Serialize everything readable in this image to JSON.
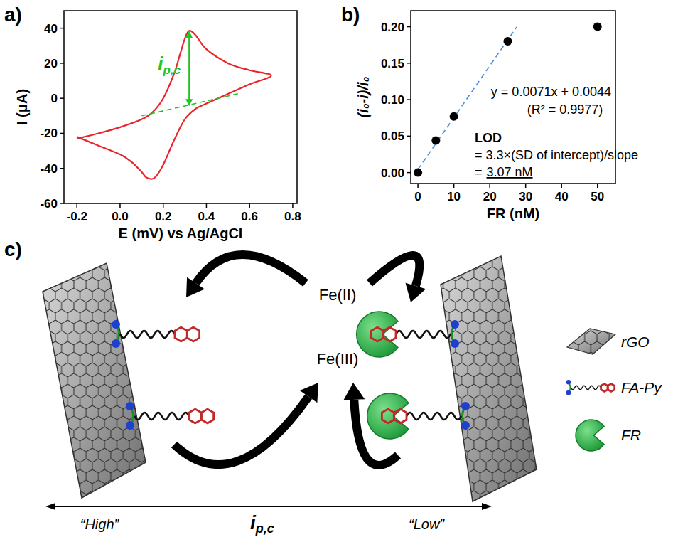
{
  "chart_data": [
    {
      "type": "line",
      "panel": "a)",
      "x_label": "E (mV) vs Ag/AgCl",
      "y_label": "I (μA)",
      "x": [
        -0.2,
        -0.1,
        0,
        0.1,
        0.15,
        0.2,
        0.25,
        0.28,
        0.3,
        0.32,
        0.35,
        0.4,
        0.5,
        0.6,
        0.7,
        0.6,
        0.5,
        0.4,
        0.35,
        0.3,
        0.25,
        0.2,
        0.17,
        0.15,
        0.12,
        0.1,
        0.05,
        0,
        -0.1,
        -0.2
      ],
      "values": [
        -23,
        -20,
        -16.5,
        -12,
        -8,
        0,
        14,
        26,
        34,
        38.5,
        36,
        28,
        20,
        16,
        13,
        8,
        2.5,
        -3,
        -6,
        -12,
        -24,
        -38,
        -44,
        -46,
        -45,
        -42,
        -36,
        -32,
        -27,
        -22
      ],
      "color": "#e8262a",
      "xlim": [
        -0.26,
        0.82
      ],
      "xticks": [
        -0.2,
        {
          "value": 0,
          "label": "0.0"
        },
        0.2,
        0.4,
        0.6,
        0.8
      ],
      "ylim": [
        -60,
        50
      ],
      "yticks": [
        -60,
        -40,
        -20,
        0,
        20,
        40
      ],
      "baseline": {
        "x": [
          0.1,
          0.56
        ],
        "values": [
          -10,
          3
        ],
        "color": "#22c422",
        "line_style": "dashed"
      },
      "annotation": {
        "text": "i",
        "subscript": "p,c",
        "x": 0.32,
        "y_from": -4.5,
        "y_to": 38.5,
        "color": "#22c422"
      }
    },
    {
      "type": "scatter",
      "panel": "b)",
      "x_label": "FR (nM)",
      "y_label": "(i₀-i)/i₀",
      "x": [
        0,
        5,
        10,
        25,
        50
      ],
      "values": [
        0,
        0.044,
        0.077,
        0.18,
        0.2
      ],
      "color": "#000000",
      "marker": "circle",
      "xlim": [
        -2,
        55
      ],
      "xticks": [
        0,
        10,
        20,
        30,
        40,
        50
      ],
      "ylim": [
        -0.015,
        0.222
      ],
      "yticks": [
        {
          "value": 0,
          "label": "0.00"
        },
        {
          "value": 0.05,
          "label": "0.05"
        },
        {
          "value": 0.1,
          "label": "0.10"
        },
        {
          "value": 0.15,
          "label": "0.15"
        },
        {
          "value": 0.2,
          "label": "0.20"
        }
      ],
      "fit": {
        "slope": 0.0071,
        "intercept": 0.0044,
        "x": [
          0,
          27.5
        ],
        "color": "#4a90d9",
        "line_style": "dashed"
      },
      "texts": {
        "equation": "y = 0.0071x + 0.0044",
        "r2": "(R² = 0.9977)",
        "lod_title": "LOD",
        "lod_formula": "= 3.3×(SD of intercept)/slope",
        "lod_equals": "=",
        "lod_value": "3.07 nM"
      }
    }
  ],
  "diagram": {
    "panel": "c)",
    "species": {
      "reduced": "Fe(II)",
      "oxidized": "Fe(III)"
    },
    "legend": [
      {
        "label": "rGO"
      },
      {
        "label": "FA-Py"
      },
      {
        "label": "FR"
      }
    ],
    "scale": {
      "high": "“High”",
      "low": "“Low”",
      "symbol": "i",
      "subscript": "p,c"
    }
  }
}
